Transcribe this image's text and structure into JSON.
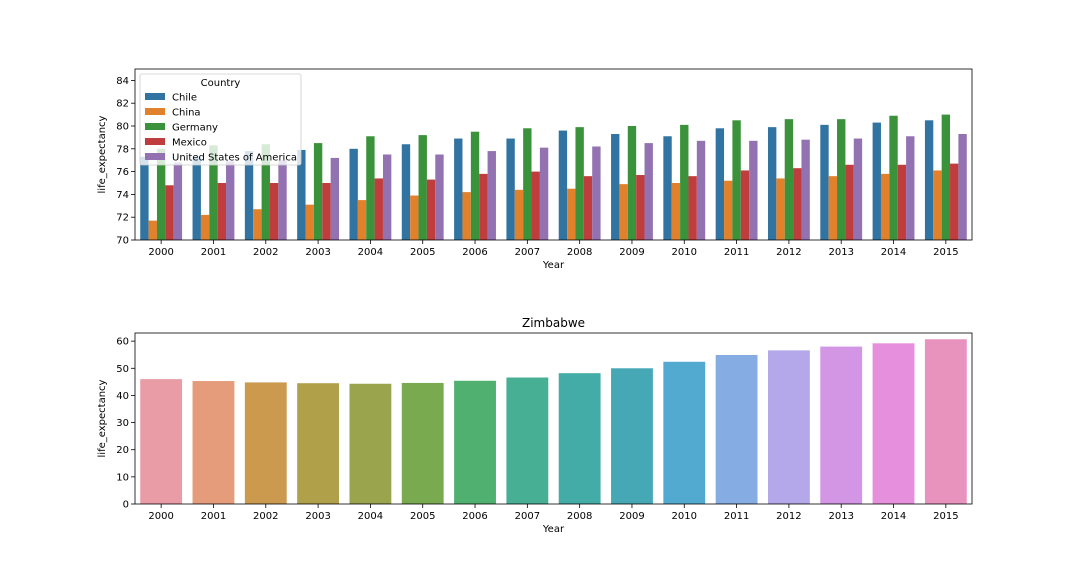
{
  "chart_data": [
    {
      "type": "bar",
      "title": "",
      "xlabel": "Year",
      "ylabel": "life_expectancy",
      "ylim": [
        70,
        85
      ],
      "yticks": [
        70,
        72,
        74,
        76,
        78,
        80,
        82,
        84
      ],
      "grid": false,
      "legend_title": "Country",
      "legend_position": "top-left",
      "categories": [
        "2000",
        "2001",
        "2002",
        "2003",
        "2004",
        "2005",
        "2006",
        "2007",
        "2008",
        "2009",
        "2010",
        "2011",
        "2012",
        "2013",
        "2014",
        "2015"
      ],
      "series": [
        {
          "name": "Chile",
          "color": "#3274a1",
          "values": [
            77.3,
            77.3,
            77.8,
            77.9,
            78.0,
            78.4,
            78.9,
            78.9,
            79.6,
            79.3,
            79.1,
            79.8,
            79.9,
            80.1,
            80.3,
            80.5
          ]
        },
        {
          "name": "China",
          "color": "#e1812c",
          "values": [
            71.7,
            72.2,
            72.7,
            73.1,
            73.5,
            73.9,
            74.2,
            74.4,
            74.5,
            74.9,
            75.0,
            75.2,
            75.4,
            75.6,
            75.8,
            76.1
          ]
        },
        {
          "name": "Germany",
          "color": "#3a923a",
          "values": [
            78.0,
            78.3,
            78.4,
            78.5,
            79.1,
            79.2,
            79.5,
            79.8,
            79.9,
            80.0,
            80.1,
            80.5,
            80.6,
            80.6,
            80.9,
            81.0
          ]
        },
        {
          "name": "Mexico",
          "color": "#c03d3e",
          "values": [
            74.8,
            75.0,
            75.0,
            75.0,
            75.4,
            75.3,
            75.8,
            76.0,
            75.6,
            75.7,
            75.6,
            76.1,
            76.3,
            76.6,
            76.6,
            76.7
          ]
        },
        {
          "name": "United States of America",
          "color": "#9372b2",
          "values": [
            76.8,
            76.9,
            77.0,
            77.2,
            77.5,
            77.5,
            77.8,
            78.1,
            78.2,
            78.5,
            78.7,
            78.7,
            78.8,
            78.9,
            79.1,
            79.3
          ]
        }
      ]
    },
    {
      "type": "bar",
      "title": "Zimbabwe",
      "xlabel": "Year",
      "ylabel": "life_expectancy",
      "ylim": [
        0,
        63
      ],
      "yticks": [
        0,
        10,
        20,
        30,
        40,
        50,
        60
      ],
      "grid": false,
      "categories": [
        "2000",
        "2001",
        "2002",
        "2003",
        "2004",
        "2005",
        "2006",
        "2007",
        "2008",
        "2009",
        "2010",
        "2011",
        "2012",
        "2013",
        "2014",
        "2015"
      ],
      "values": [
        46.0,
        45.3,
        44.8,
        44.5,
        44.3,
        44.6,
        45.4,
        46.6,
        48.2,
        50.0,
        52.4,
        54.9,
        56.6,
        58.0,
        59.2,
        60.7
      ],
      "colors": [
        "#e99ba6",
        "#e59c7b",
        "#cc9a4e",
        "#b1a04a",
        "#9aa44d",
        "#7aaa4f",
        "#4fb070",
        "#47af93",
        "#44aca6",
        "#45a8b4",
        "#52aad1",
        "#86ade3",
        "#b4a8ea",
        "#d296e5",
        "#e68fdc",
        "#e892be"
      ]
    }
  ]
}
